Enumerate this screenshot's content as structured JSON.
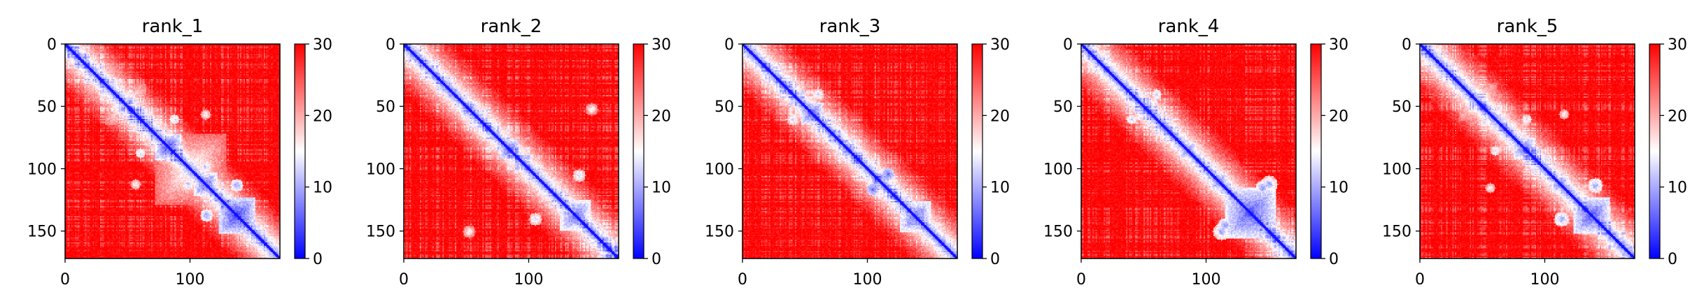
{
  "chart_data": [
    {
      "type": "heatmap",
      "title": "rank_1",
      "matrix_size": 172,
      "x_ticks": [
        0,
        100
      ],
      "y_ticks": [
        0,
        50,
        100,
        150
      ],
      "colorbar": {
        "ticks": [
          0,
          10,
          20,
          30
        ],
        "range": [
          0,
          30
        ],
        "colors": [
          "#0000ff",
          "#ffffff",
          "#ff0000"
        ]
      },
      "blocks": [
        {
          "center": 48,
          "radius": 16,
          "value": 13
        },
        {
          "center": 58,
          "radius": 6,
          "value": 8
        },
        {
          "center": 82,
          "radius": 10,
          "value": 5
        },
        {
          "center": 112,
          "radius": 9,
          "value": 6
        },
        {
          "center": 137,
          "radius": 14,
          "value": 4
        },
        {
          "center": 100,
          "radius": 28,
          "value": 14
        }
      ],
      "contacts": [
        {
          "i": 60,
          "j": 87,
          "r": 4,
          "value": 12
        },
        {
          "i": 113,
          "j": 137,
          "r": 5,
          "value": 9
        },
        {
          "i": 98,
          "j": 112,
          "r": 6,
          "value": 11
        },
        {
          "i": 56,
          "j": 112,
          "r": 4,
          "value": 15
        }
      ],
      "seed": 1
    },
    {
      "type": "heatmap",
      "title": "rank_2",
      "matrix_size": 172,
      "x_ticks": [
        0,
        100
      ],
      "y_ticks": [
        0,
        50,
        100,
        150
      ],
      "colorbar": {
        "ticks": [
          0,
          10,
          20,
          30
        ],
        "range": [
          0,
          30
        ],
        "colors": [
          "#0000ff",
          "#ffffff",
          "#ff0000"
        ]
      },
      "blocks": [
        {
          "center": 52,
          "radius": 6,
          "value": 6
        },
        {
          "center": 84,
          "radius": 7,
          "value": 5
        },
        {
          "center": 105,
          "radius": 5,
          "value": 7
        },
        {
          "center": 137,
          "radius": 12,
          "value": 6
        }
      ],
      "contacts": [
        {
          "i": 52,
          "j": 150,
          "r": 5,
          "value": 15
        },
        {
          "i": 105,
          "j": 140,
          "r": 5,
          "value": 12
        }
      ],
      "seed": 2
    },
    {
      "type": "heatmap",
      "title": "rank_3",
      "matrix_size": 172,
      "x_ticks": [
        0,
        100
      ],
      "y_ticks": [
        0,
        50,
        100,
        150
      ],
      "colorbar": {
        "ticks": [
          0,
          10,
          20,
          30
        ],
        "range": [
          0,
          30
        ],
        "colors": [
          "#0000ff",
          "#ffffff",
          "#ff0000"
        ]
      },
      "blocks": [
        {
          "center": 28,
          "radius": 6,
          "value": 10
        },
        {
          "center": 55,
          "radius": 8,
          "value": 5
        },
        {
          "center": 84,
          "radius": 6,
          "value": 6
        },
        {
          "center": 108,
          "radius": 5,
          "value": 5
        },
        {
          "center": 138,
          "radius": 12,
          "value": 6
        }
      ],
      "contacts": [
        {
          "i": 40,
          "j": 60,
          "r": 5,
          "value": 12
        },
        {
          "i": 104,
          "j": 116,
          "r": 5,
          "value": 6
        }
      ],
      "seed": 3
    },
    {
      "type": "heatmap",
      "title": "rank_4",
      "matrix_size": 172,
      "x_ticks": [
        0,
        100
      ],
      "y_ticks": [
        0,
        50,
        100,
        150
      ],
      "colorbar": {
        "ticks": [
          0,
          10,
          20,
          30
        ],
        "range": [
          0,
          30
        ],
        "colors": [
          "#0000ff",
          "#ffffff",
          "#ff0000"
        ]
      },
      "blocks": [
        {
          "center": 30,
          "radius": 8,
          "value": 11
        },
        {
          "center": 52,
          "radius": 6,
          "value": 7
        },
        {
          "center": 85,
          "radius": 6,
          "value": 6
        },
        {
          "center": 110,
          "radius": 6,
          "value": 6
        },
        {
          "center": 135,
          "radius": 20,
          "value": 5
        }
      ],
      "contacts": [
        {
          "i": 40,
          "j": 60,
          "r": 4,
          "value": 12
        },
        {
          "i": 112,
          "j": 150,
          "r": 7,
          "value": 9
        },
        {
          "i": 115,
          "j": 145,
          "r": 6,
          "value": 8
        }
      ],
      "seed": 4
    },
    {
      "type": "heatmap",
      "title": "rank_5",
      "matrix_size": 172,
      "x_ticks": [
        0,
        100
      ],
      "y_ticks": [
        0,
        50,
        100,
        150
      ],
      "colorbar": {
        "ticks": [
          0,
          10,
          20,
          30
        ],
        "range": [
          0,
          30
        ],
        "colors": [
          "#0000ff",
          "#ffffff",
          "#ff0000"
        ]
      },
      "blocks": [
        {
          "center": 46,
          "radius": 15,
          "value": 13
        },
        {
          "center": 83,
          "radius": 8,
          "value": 6
        },
        {
          "center": 112,
          "radius": 6,
          "value": 6
        },
        {
          "center": 137,
          "radius": 14,
          "value": 5
        }
      ],
      "contacts": [
        {
          "i": 60,
          "j": 85,
          "r": 4,
          "value": 13
        },
        {
          "i": 113,
          "j": 140,
          "r": 6,
          "value": 9
        },
        {
          "i": 56,
          "j": 115,
          "r": 4,
          "value": 15
        }
      ],
      "seed": 5
    }
  ]
}
